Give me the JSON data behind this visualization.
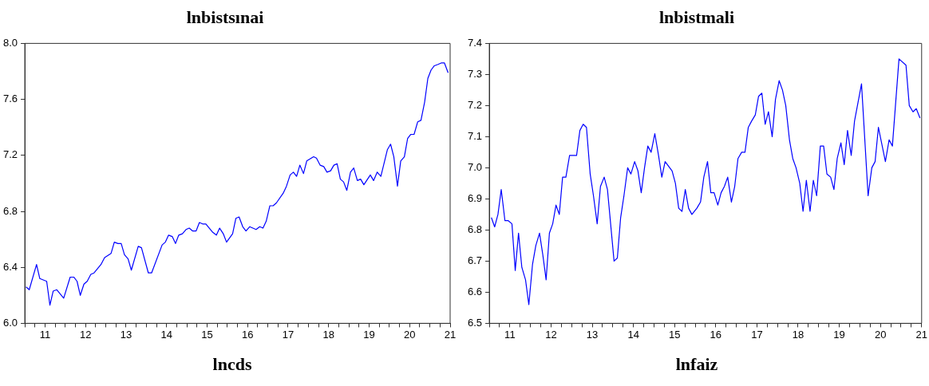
{
  "chart_data": [
    {
      "type": "line",
      "title": "lnbistsınai",
      "color": "#0000ff",
      "grid": false,
      "legend": false,
      "marker": "none",
      "line_style": "solid",
      "x": [
        10.53,
        10.61,
        10.79,
        10.87,
        11.04,
        11.12,
        11.2,
        11.29,
        11.46,
        11.62,
        11.71,
        11.79,
        11.87,
        11.96,
        12.04,
        12.13,
        12.21,
        12.38,
        12.47,
        12.63,
        12.71,
        12.8,
        12.88,
        12.96,
        13.05,
        13.13,
        13.3,
        13.38,
        13.55,
        13.63,
        13.89,
        13.97,
        14.05,
        14.14,
        14.22,
        14.3,
        14.39,
        14.48,
        14.56,
        14.64,
        14.73,
        14.81,
        14.89,
        14.97,
        15.14,
        15.23,
        15.31,
        15.4,
        15.48,
        15.63,
        15.71,
        15.79,
        15.88,
        15.96,
        16.05,
        16.21,
        16.3,
        16.38,
        16.46,
        16.55,
        16.63,
        16.71,
        16.88,
        16.96,
        17.05,
        17.13,
        17.21,
        17.29,
        17.38,
        17.46,
        17.63,
        17.7,
        17.79,
        17.88,
        17.96,
        18.05,
        18.13,
        18.21,
        18.29,
        18.37,
        18.45,
        18.54,
        18.62,
        18.71,
        18.79,
        18.87,
        19.03,
        19.11,
        19.2,
        19.29,
        19.45,
        19.53,
        19.61,
        19.7,
        19.78,
        19.87,
        19.95,
        20.03,
        20.11,
        20.2,
        20.28,
        20.37,
        20.45,
        20.53,
        20.61,
        20.7,
        20.78,
        20.86,
        20.95
      ],
      "values": [
        6.26,
        6.24,
        6.42,
        6.32,
        6.3,
        6.13,
        6.23,
        6.24,
        6.18,
        6.33,
        6.33,
        6.3,
        6.2,
        6.28,
        6.3,
        6.35,
        6.36,
        6.42,
        6.47,
        6.5,
        6.58,
        6.57,
        6.57,
        6.49,
        6.46,
        6.38,
        6.55,
        6.54,
        6.36,
        6.36,
        6.56,
        6.58,
        6.63,
        6.62,
        6.57,
        6.63,
        6.64,
        6.67,
        6.68,
        6.66,
        6.66,
        6.72,
        6.71,
        6.71,
        6.65,
        6.63,
        6.68,
        6.64,
        6.58,
        6.64,
        6.75,
        6.76,
        6.69,
        6.66,
        6.69,
        6.67,
        6.69,
        6.68,
        6.73,
        6.84,
        6.84,
        6.86,
        6.93,
        6.98,
        7.06,
        7.08,
        7.05,
        7.13,
        7.07,
        7.16,
        7.19,
        7.18,
        7.13,
        7.12,
        7.08,
        7.09,
        7.13,
        7.14,
        7.03,
        7.01,
        6.95,
        7.08,
        7.11,
        7.02,
        7.03,
        6.99,
        7.06,
        7.02,
        7.08,
        7.05,
        7.24,
        7.28,
        7.19,
        6.98,
        7.16,
        7.19,
        7.32,
        7.35,
        7.35,
        7.44,
        7.45,
        7.58,
        7.75,
        7.81,
        7.84,
        7.85,
        7.86,
        7.86,
        7.79
      ],
      "xlim": [
        10.5,
        21
      ],
      "xticks": [
        {
          "value": 10.5,
          "label": null
        },
        {
          "value": 10.75,
          "label": null
        },
        11,
        {
          "value": 11.25,
          "label": null
        },
        {
          "value": 11.5,
          "label": null
        },
        {
          "value": 11.75,
          "label": null
        },
        12,
        {
          "value": 12.25,
          "label": null
        },
        {
          "value": 12.5,
          "label": null
        },
        {
          "value": 12.75,
          "label": null
        },
        13,
        {
          "value": 13.25,
          "label": null
        },
        {
          "value": 13.5,
          "label": null
        },
        {
          "value": 13.75,
          "label": null
        },
        14,
        {
          "value": 14.25,
          "label": null
        },
        {
          "value": 14.5,
          "label": null
        },
        {
          "value": 14.75,
          "label": null
        },
        15,
        {
          "value": 15.25,
          "label": null
        },
        {
          "value": 15.5,
          "label": null
        },
        {
          "value": 15.75,
          "label": null
        },
        16,
        {
          "value": 16.25,
          "label": null
        },
        {
          "value": 16.5,
          "label": null
        },
        {
          "value": 16.75,
          "label": null
        },
        17,
        {
          "value": 17.25,
          "label": null
        },
        {
          "value": 17.5,
          "label": null
        },
        {
          "value": 17.75,
          "label": null
        },
        18,
        {
          "value": 18.25,
          "label": null
        },
        {
          "value": 18.5,
          "label": null
        },
        {
          "value": 18.75,
          "label": null
        },
        19,
        {
          "value": 19.25,
          "label": null
        },
        {
          "value": 19.5,
          "label": null
        },
        {
          "value": 19.75,
          "label": null
        },
        20,
        {
          "value": 20.25,
          "label": null
        },
        {
          "value": 20.5,
          "label": null
        },
        {
          "value": 20.75,
          "label": null
        },
        21
      ],
      "ylim": [
        6.0,
        8.0
      ],
      "yticks": [
        {
          "value": 6,
          "label": "6.0"
        },
        {
          "value": 6.4,
          "label": "6.4"
        },
        {
          "value": 6.8,
          "label": "6.8"
        },
        {
          "value": 7.2,
          "label": "7.2"
        },
        {
          "value": 7.6,
          "label": "7.6"
        },
        {
          "value": 8,
          "label": "8.0"
        }
      ]
    },
    {
      "type": "line",
      "title": "lnbistmali",
      "color": "#0000ff",
      "grid": false,
      "legend": false,
      "marker": "none",
      "line_style": "solid",
      "x": [
        10.55,
        10.63,
        10.71,
        10.79,
        10.88,
        10.96,
        11.05,
        11.13,
        11.21,
        11.29,
        11.38,
        11.46,
        11.55,
        11.63,
        11.72,
        11.8,
        11.88,
        11.96,
        12.04,
        12.12,
        12.2,
        12.28,
        12.36,
        12.45,
        12.53,
        12.62,
        12.7,
        12.78,
        12.86,
        12.95,
        13.03,
        13.12,
        13.2,
        13.29,
        13.37,
        13.53,
        13.61,
        13.69,
        13.77,
        13.86,
        13.94,
        14.03,
        14.11,
        14.19,
        14.27,
        14.35,
        14.43,
        14.52,
        14.61,
        14.69,
        14.77,
        14.94,
        15.02,
        15.1,
        15.18,
        15.26,
        15.34,
        15.42,
        15.54,
        15.63,
        15.71,
        15.8,
        15.88,
        15.96,
        16.05,
        16.13,
        16.21,
        16.29,
        16.38,
        16.46,
        16.54,
        16.63,
        16.71,
        16.79,
        16.87,
        16.96,
        17.04,
        17.12,
        17.2,
        17.28,
        17.37,
        17.45,
        17.54,
        17.62,
        17.7,
        17.79,
        17.87,
        17.95,
        18.04,
        18.12,
        18.2,
        18.29,
        18.37,
        18.45,
        18.54,
        18.62,
        18.7,
        18.79,
        18.87,
        18.95,
        19.04,
        19.12,
        19.2,
        19.29,
        19.37,
        19.54,
        19.7,
        19.79,
        19.87,
        19.95,
        20.12,
        20.21,
        20.29,
        20.45,
        20.62,
        20.7,
        20.79,
        20.87,
        20.96
      ],
      "values": [
        6.84,
        6.81,
        6.85,
        6.93,
        6.83,
        6.83,
        6.82,
        6.67,
        6.79,
        6.68,
        6.64,
        6.56,
        6.69,
        6.75,
        6.79,
        6.72,
        6.64,
        6.79,
        6.82,
        6.88,
        6.85,
        6.97,
        6.97,
        7.04,
        7.04,
        7.04,
        7.12,
        7.14,
        7.13,
        6.98,
        6.91,
        6.82,
        6.94,
        6.97,
        6.93,
        6.7,
        6.71,
        6.84,
        6.91,
        7.0,
        6.98,
        7.02,
        6.99,
        6.92,
        7.0,
        7.07,
        7.05,
        7.11,
        7.04,
        6.97,
        7.02,
        6.99,
        6.95,
        6.87,
        6.86,
        6.93,
        6.87,
        6.85,
        6.87,
        6.89,
        6.97,
        7.02,
        6.92,
        6.92,
        6.88,
        6.92,
        6.94,
        6.97,
        6.89,
        6.94,
        7.03,
        7.05,
        7.05,
        7.13,
        7.15,
        7.17,
        7.23,
        7.24,
        7.14,
        7.18,
        7.1,
        7.22,
        7.28,
        7.25,
        7.2,
        7.09,
        7.03,
        7.0,
        6.95,
        6.86,
        6.96,
        6.86,
        6.96,
        6.91,
        7.07,
        7.07,
        6.98,
        6.97,
        6.93,
        7.03,
        7.08,
        7.01,
        7.12,
        7.04,
        7.15,
        7.27,
        6.91,
        7.0,
        7.02,
        7.13,
        7.02,
        7.09,
        7.07,
        7.35,
        7.33,
        7.2,
        7.18,
        7.19,
        7.16
      ],
      "xlim": [
        10.5,
        21
      ],
      "xticks": [
        {
          "value": 10.5,
          "label": null
        },
        {
          "value": 10.75,
          "label": null
        },
        11,
        {
          "value": 11.25,
          "label": null
        },
        {
          "value": 11.5,
          "label": null
        },
        {
          "value": 11.75,
          "label": null
        },
        12,
        {
          "value": 12.25,
          "label": null
        },
        {
          "value": 12.5,
          "label": null
        },
        {
          "value": 12.75,
          "label": null
        },
        13,
        {
          "value": 13.25,
          "label": null
        },
        {
          "value": 13.5,
          "label": null
        },
        {
          "value": 13.75,
          "label": null
        },
        14,
        {
          "value": 14.25,
          "label": null
        },
        {
          "value": 14.5,
          "label": null
        },
        {
          "value": 14.75,
          "label": null
        },
        15,
        {
          "value": 15.25,
          "label": null
        },
        {
          "value": 15.5,
          "label": null
        },
        {
          "value": 15.75,
          "label": null
        },
        16,
        {
          "value": 16.25,
          "label": null
        },
        {
          "value": 16.5,
          "label": null
        },
        {
          "value": 16.75,
          "label": null
        },
        17,
        {
          "value": 17.25,
          "label": null
        },
        {
          "value": 17.5,
          "label": null
        },
        {
          "value": 17.75,
          "label": null
        },
        18,
        {
          "value": 18.25,
          "label": null
        },
        {
          "value": 18.5,
          "label": null
        },
        {
          "value": 18.75,
          "label": null
        },
        19,
        {
          "value": 19.25,
          "label": null
        },
        {
          "value": 19.5,
          "label": null
        },
        {
          "value": 19.75,
          "label": null
        },
        20,
        {
          "value": 20.25,
          "label": null
        },
        {
          "value": 20.5,
          "label": null
        },
        {
          "value": 20.75,
          "label": null
        },
        21
      ],
      "ylim": [
        6.5,
        7.4
      ],
      "yticks": [
        {
          "value": 6.5,
          "label": "6.5"
        },
        {
          "value": 6.6,
          "label": "6.6"
        },
        {
          "value": 6.7,
          "label": "6.7"
        },
        {
          "value": 6.8,
          "label": "6.8"
        },
        {
          "value": 6.9,
          "label": "6.9"
        },
        {
          "value": 7.0,
          "label": "7.0"
        },
        {
          "value": 7.1,
          "label": "7.1"
        },
        {
          "value": 7.2,
          "label": "7.2"
        },
        {
          "value": 7.3,
          "label": "7.3"
        },
        {
          "value": 7.4,
          "label": "7.4"
        }
      ]
    },
    {
      "type": "other",
      "title": "lncds"
    },
    {
      "type": "other",
      "title": "lnfaiz"
    }
  ]
}
